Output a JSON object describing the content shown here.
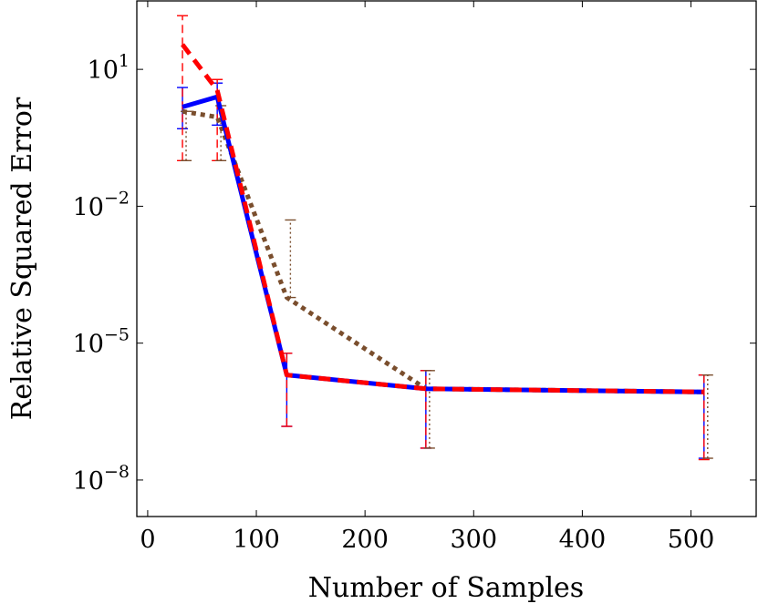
{
  "chart_data": {
    "type": "line",
    "title": "",
    "xlabel": "Number of Samples",
    "ylabel": "Relative Squared Error",
    "xlim": [
      -10,
      560
    ],
    "ylim_log10": [
      -8.8,
      2.5
    ],
    "yscale": "log",
    "x_ticks": [
      0,
      100,
      200,
      300,
      400,
      500
    ],
    "x_tick_labels": [
      "0",
      "100",
      "200",
      "300",
      "400",
      "500"
    ],
    "y_ticks_exp": [
      -8,
      -5,
      -2,
      1
    ],
    "y_tick_labels": [
      {
        "base": "10",
        "exp": "−8"
      },
      {
        "base": "10",
        "exp": "−5"
      },
      {
        "base": "10",
        "exp": "−2"
      },
      {
        "base": "10",
        "exp": "1"
      }
    ],
    "grid": false,
    "legend": "none",
    "series": [
      {
        "color": "#0000ff",
        "style": "solid",
        "x": [
          32,
          64,
          128,
          256,
          512
        ],
        "y": [
          1.5,
          2.5,
          2e-06,
          1e-06,
          8.5e-07
        ],
        "err_low": [
          0.5,
          0.6,
          1.5e-07,
          5e-08,
          3e-08
        ],
        "err_high": [
          4.0,
          5.0,
          6e-06,
          2.5e-06,
          2e-06
        ]
      },
      {
        "color": "#ff0000",
        "style": "dashed",
        "x": [
          32,
          64,
          128,
          256,
          512
        ],
        "y": [
          35.0,
          3.5,
          2e-06,
          1e-06,
          8.5e-07
        ],
        "err_low": [
          0.1,
          0.1,
          1.5e-07,
          5e-08,
          2.8e-08
        ],
        "err_high": [
          150.0,
          6.0,
          6e-06,
          2.5e-06,
          2e-06
        ]
      },
      {
        "color": "#7a4e2d",
        "style": "dotted",
        "x": [
          32,
          64,
          128,
          256,
          512
        ],
        "y": [
          1.2,
          0.9,
          0.0001,
          1e-06,
          8.5e-07
        ],
        "err_low": [
          0.1,
          0.1,
          0.0001,
          5e-08,
          3e-08
        ],
        "err_high": [
          1.2,
          1.6,
          0.005,
          2.5e-06,
          2e-06
        ]
      }
    ]
  }
}
